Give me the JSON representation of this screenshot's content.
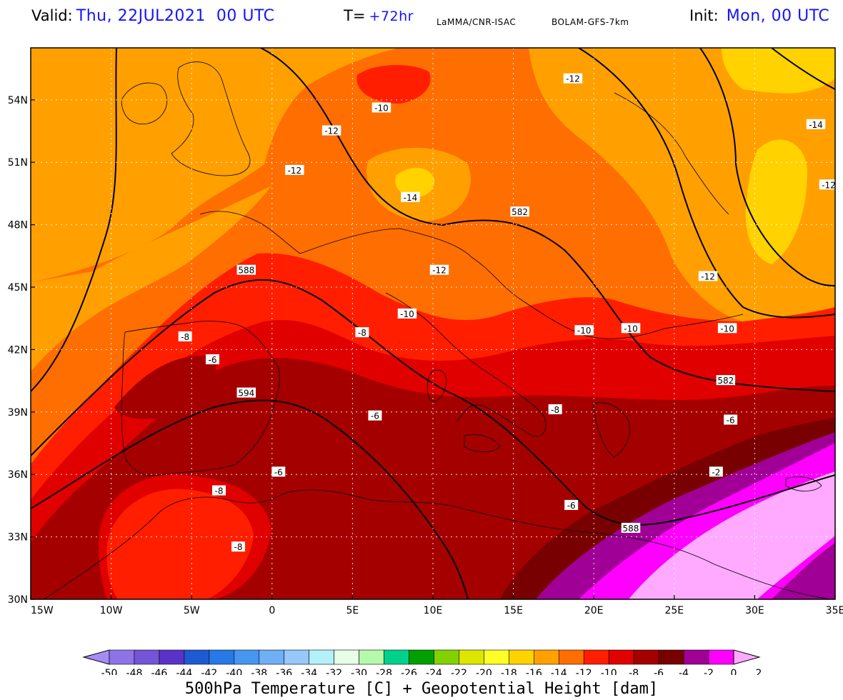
{
  "header": {
    "valid_label": "Valid:",
    "valid_value": "Thu, 22JUL2021  00 UTC",
    "lead_label": "T=",
    "lead_value": "+72hr",
    "source": "LaMMA/CNR-ISAC",
    "model": "BOLAM-GFS-7km",
    "init_label": "Init:",
    "init_value": "Mon, 00 UTC"
  },
  "map": {
    "lon_range": [
      -15,
      35
    ],
    "lat_range": [
      30,
      56.5
    ],
    "lon_ticks": [
      "15W",
      "10W",
      "5W",
      "0",
      "5E",
      "10E",
      "15E",
      "20E",
      "25E",
      "30E",
      "35E"
    ],
    "lat_ticks": [
      "30N",
      "33N",
      "36N",
      "39N",
      "42N",
      "45N",
      "48N",
      "51N",
      "54N"
    ],
    "gridlines": true,
    "temperature_labels": [
      {
        "text": "-12",
        "lon": 3.7,
        "lat": 52.5
      },
      {
        "text": "-10",
        "lon": 6.8,
        "lat": 53.6
      },
      {
        "text": "-12",
        "lon": 18.7,
        "lat": 55.0
      },
      {
        "text": "-14",
        "lon": 33.8,
        "lat": 52.8
      },
      {
        "text": "-12",
        "lon": 1.4,
        "lat": 50.6
      },
      {
        "text": "-14",
        "lon": 8.6,
        "lat": 49.3
      },
      {
        "text": "-12",
        "lon": 34.6,
        "lat": 49.9
      },
      {
        "text": "-12",
        "lon": 10.4,
        "lat": 45.8
      },
      {
        "text": "-10",
        "lon": 8.4,
        "lat": 43.7
      },
      {
        "text": "-12",
        "lon": 27.1,
        "lat": 45.5
      },
      {
        "text": "-8",
        "lon": -5.4,
        "lat": 42.6
      },
      {
        "text": "-6",
        "lon": -3.7,
        "lat": 41.5
      },
      {
        "text": "-8",
        "lon": 5.6,
        "lat": 42.8
      },
      {
        "text": "-10",
        "lon": 19.4,
        "lat": 42.9
      },
      {
        "text": "-10",
        "lon": 22.3,
        "lat": 43.0
      },
      {
        "text": "-10",
        "lon": 28.3,
        "lat": 43.0
      },
      {
        "text": "-6",
        "lon": 6.4,
        "lat": 38.8
      },
      {
        "text": "-8",
        "lon": 17.6,
        "lat": 39.1
      },
      {
        "text": "-6",
        "lon": 28.5,
        "lat": 38.6
      },
      {
        "text": "-6",
        "lon": 0.4,
        "lat": 36.1
      },
      {
        "text": "-8",
        "lon": -3.3,
        "lat": 35.2
      },
      {
        "text": "-8",
        "lon": -2.1,
        "lat": 32.5
      },
      {
        "text": "-6",
        "lon": 18.6,
        "lat": 34.5
      },
      {
        "text": "-2",
        "lon": 27.6,
        "lat": 36.1
      }
    ],
    "height_labels": [
      {
        "text": "582",
        "lon": 15.4,
        "lat": 48.6
      },
      {
        "text": "588",
        "lon": -1.6,
        "lat": 45.8
      },
      {
        "text": "594",
        "lon": -1.6,
        "lat": 39.9
      },
      {
        "text": "582",
        "lon": 28.2,
        "lat": 40.5
      },
      {
        "text": "588",
        "lon": 22.3,
        "lat": 33.4
      }
    ]
  },
  "colorbar": {
    "tick_labels": [
      "-50",
      "-48",
      "-46",
      "-44",
      "-42",
      "-40",
      "-38",
      "-36",
      "-34",
      "-32",
      "-30",
      "-28",
      "-26",
      "-24",
      "-22",
      "-20",
      "-18",
      "-16",
      "-14",
      "-12",
      "-10",
      "-8",
      "-6",
      "-4",
      "-2",
      "0",
      "2"
    ],
    "colors": [
      "#a58cf5",
      "#8c73e6",
      "#7355d7",
      "#5a32c8",
      "#1e5ad2",
      "#2878e6",
      "#4696f0",
      "#6eaff5",
      "#96c8fa",
      "#b4f0fa",
      "#e6ffe6",
      "#b4faaa",
      "#00d28c",
      "#00a000",
      "#82d200",
      "#dce600",
      "#ffff28",
      "#ffd200",
      "#ffa000",
      "#ff6e00",
      "#ff1e00",
      "#e10000",
      "#a50000",
      "#780000",
      "#a00096",
      "#ff00ff",
      "#ffaaff"
    ],
    "title": "500hPa Temperature [C] + Geopotential Height [dam]"
  }
}
